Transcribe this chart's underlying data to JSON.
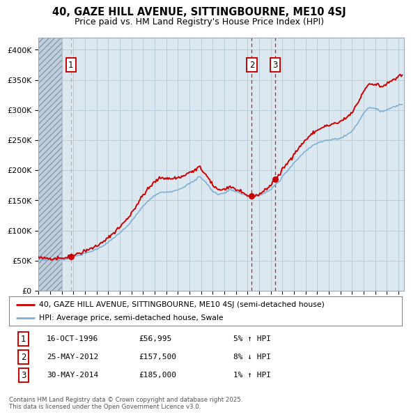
{
  "title_line1": "40, GAZE HILL AVENUE, SITTINGBOURNE, ME10 4SJ",
  "title_line2": "Price paid vs. HM Land Registry's House Price Index (HPI)",
  "legend_line1": "40, GAZE HILL AVENUE, SITTINGBOURNE, ME10 4SJ (semi-detached house)",
  "legend_line2": "HPI: Average price, semi-detached house, Swale",
  "sale_color": "#cc0000",
  "hpi_color": "#7bafd4",
  "vline1_color": "#999999",
  "vline23_color": "#cc0000",
  "annotation_border_color": "#cc0000",
  "sale_table": [
    {
      "num": "1",
      "date": "16-OCT-1996",
      "price": "£56,995",
      "pct": "5% ↑ HPI"
    },
    {
      "num": "2",
      "date": "25-MAY-2012",
      "price": "£157,500",
      "pct": "8% ↓ HPI"
    },
    {
      "num": "3",
      "date": "30-MAY-2014",
      "price": "£185,000",
      "pct": "1% ↑ HPI"
    }
  ],
  "footer": "Contains HM Land Registry data © Crown copyright and database right 2025.\nThis data is licensed under the Open Government Licence v3.0.",
  "yticks": [
    0,
    50000,
    100000,
    150000,
    200000,
    250000,
    300000,
    350000,
    400000
  ],
  "ytick_labels": [
    "£0",
    "£50K",
    "£100K",
    "£150K",
    "£200K",
    "£250K",
    "£300K",
    "£350K",
    "£400K"
  ],
  "plot_bg_color": "#dce8f0",
  "grid_color": "#b8ccd8",
  "hatch_color": "#c0d0dc"
}
